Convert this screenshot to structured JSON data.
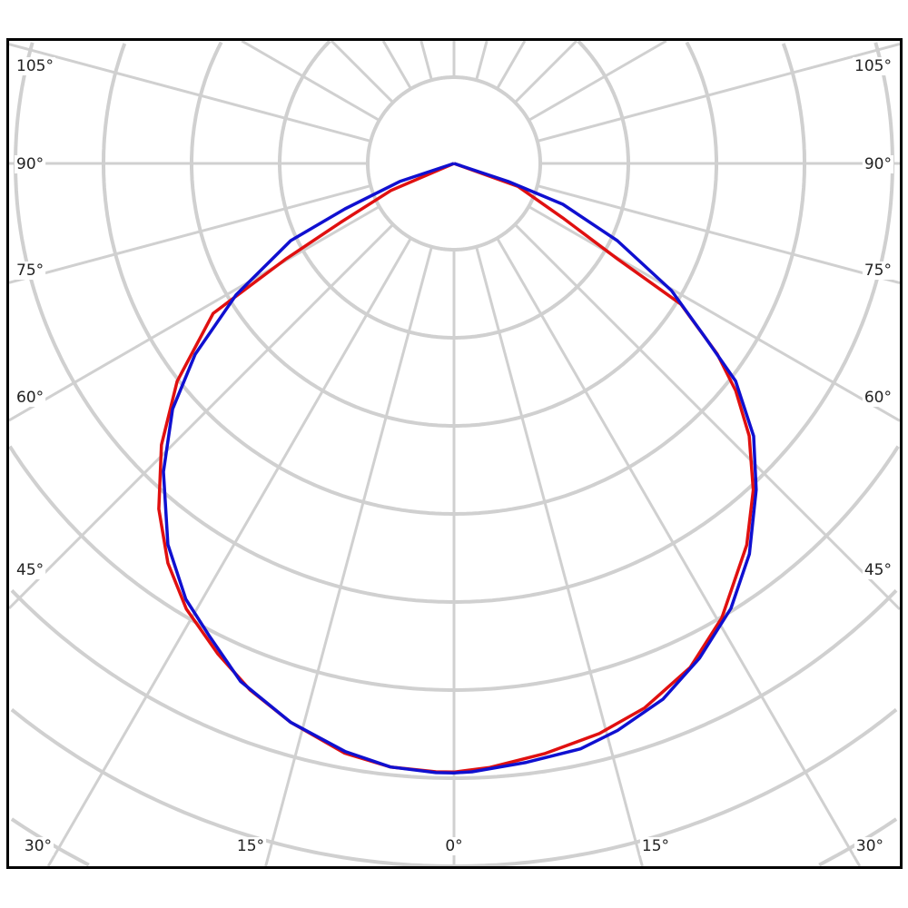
{
  "chart_data": {
    "type": "polar-line",
    "title": "",
    "angle_labels": {
      "left": [
        "105°",
        "90°",
        "75°",
        "60°",
        "45°"
      ],
      "right": [
        "105°",
        "90°",
        "75°",
        "60°",
        "45°"
      ],
      "bottom": [
        "30°",
        "15°",
        "0°",
        "15°",
        "30°"
      ]
    },
    "angle_grid_step_deg": 15,
    "radial_rings": 8,
    "grid": true,
    "colors": {
      "grid": "#d0d0d0",
      "frame": "#000000"
    },
    "series": [
      {
        "color": "#e01010",
        "angles": [
          -66.8,
          -62.5,
          -60.4,
          -58.1,
          -51.8,
          -46.1,
          -40.5,
          -35.6,
          -31.0,
          -25.7,
          -21.2,
          -16.3,
          -10.5,
          -6.0,
          -1.7,
          0,
          3.4,
          8.7,
          14.3,
          19.3,
          25.1,
          30.5,
          37.5,
          42.5,
          47.3,
          51.1,
          54.1,
          58.2,
          59.7,
          63.4,
          70.3
        ],
        "values": [
          0.78,
          1.45,
          2.19,
          3.22,
          4.0,
          4.61,
          5.16,
          5.58,
          5.9,
          6.18,
          6.41,
          6.61,
          6.81,
          6.89,
          6.91,
          6.91,
          6.87,
          6.78,
          6.68,
          6.55,
          6.32,
          5.99,
          5.46,
          5.03,
          4.56,
          4.11,
          3.69,
          3.03,
          2.15,
          1.38,
          0.77
        ]
      },
      {
        "color": "#1010d0",
        "angles": [
          -71.6,
          -67.4,
          -64.7,
          -58.9,
          -53.6,
          -48.9,
          -43.3,
          -36.9,
          -31.6,
          -27.4,
          -22.4,
          -16.3,
          -10.5,
          -6.0,
          -1.7,
          0,
          1.7,
          6.9,
          12.2,
          16.1,
          21.3,
          26.4,
          31.9,
          37.1,
          42.8,
          47.7,
          52.3,
          55.4,
          59.7,
          64.7,
          69.4,
          71.6
        ],
        "values": [
          0.65,
          1.34,
          2.05,
          2.89,
          3.65,
          4.24,
          4.81,
          5.41,
          5.81,
          6.04,
          6.36,
          6.61,
          6.79,
          6.89,
          6.92,
          6.92,
          6.91,
          6.85,
          6.8,
          6.7,
          6.53,
          6.27,
          5.95,
          5.56,
          5.05,
          4.6,
          4.04,
          3.45,
          2.86,
          2.05,
          1.32,
          0.65
        ]
      }
    ]
  }
}
